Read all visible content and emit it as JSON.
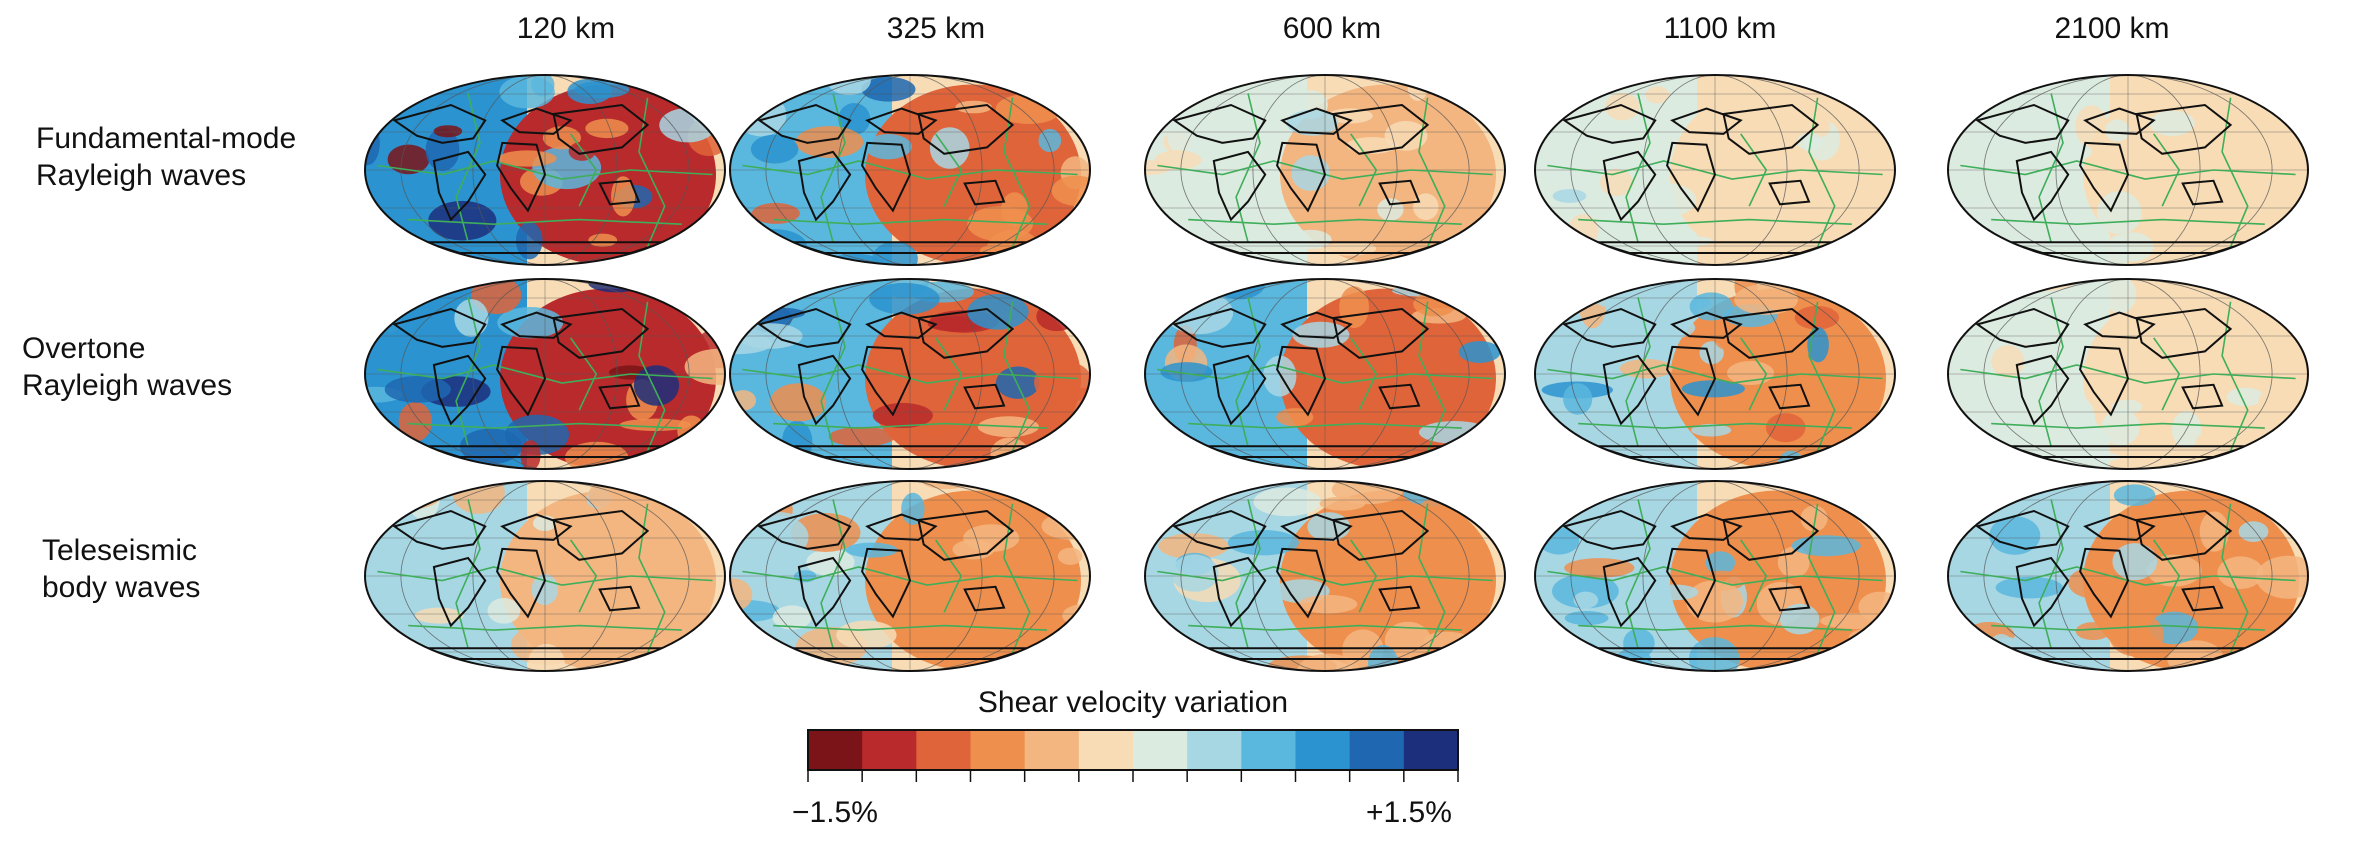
{
  "columns": [
    "120 km",
    "325 km",
    "600 km",
    "1100 km",
    "2100 km"
  ],
  "rows": [
    {
      "line1": "Fundamental-mode",
      "line2": "Rayleigh waves"
    },
    {
      "line1": "Overtone",
      "line2": "Rayleigh waves"
    },
    {
      "line1": "Teleseismic",
      "line2": "body waves"
    }
  ],
  "intensity": [
    [
      1.0,
      0.72,
      0.22,
      0.18,
      0.14
    ],
    [
      1.0,
      0.82,
      0.68,
      0.55,
      0.16
    ],
    [
      0.32,
      0.42,
      0.5,
      0.52,
      0.5
    ]
  ],
  "colorbar": {
    "title": "Shear velocity variation",
    "min_label": "−1.5%",
    "max_label": "+1.5%",
    "colors": [
      "#7a1418",
      "#b82a2c",
      "#e0643a",
      "#ee8f4d",
      "#f3b680",
      "#f7dcb6",
      "#dcebe0",
      "#a8d7e4",
      "#5ab7de",
      "#2b93cf",
      "#1f67b0",
      "#1c2f7c"
    ]
  },
  "map_colors": {
    "coast": "#111111",
    "plate": "#3fae5a",
    "grid": "#555555"
  }
}
